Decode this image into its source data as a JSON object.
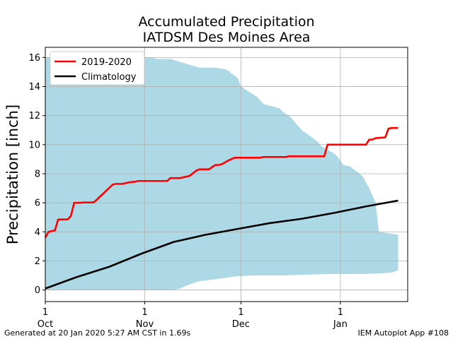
{
  "chart_data": {
    "type": "area",
    "title": [
      "Accumulated Precipitation",
      "IATDSM Des Moines Area"
    ],
    "xlabel": "",
    "ylabel": "Precipitation [inch]",
    "xlim": [
      0,
      113
    ],
    "ylim": [
      -0.8,
      16.7
    ],
    "grid": true,
    "legend_placement": "top-left",
    "x_ticks": [
      {
        "pos": 0,
        "label": "1\nOct"
      },
      {
        "pos": 31,
        "label": "1\nNov"
      },
      {
        "pos": 61,
        "label": "1\nDec"
      },
      {
        "pos": 92,
        "label": "1\nJan"
      }
    ],
    "y_ticks": [
      0,
      2,
      4,
      6,
      8,
      10,
      12,
      14,
      16
    ],
    "series": [
      {
        "name": "2019-2020",
        "color": "#ff0000",
        "x": [
          0,
          1,
          3,
          4,
          6,
          7,
          8,
          9,
          10,
          11,
          12,
          15,
          16,
          21,
          22,
          23,
          24,
          25,
          26,
          28,
          29,
          30,
          31,
          32,
          36,
          38,
          39,
          41,
          42,
          45,
          47,
          48,
          50,
          51,
          53,
          54,
          55,
          57,
          59,
          67,
          68,
          75,
          76,
          87,
          88,
          100,
          101,
          102,
          103,
          106,
          107,
          108,
          110
        ],
        "y": [
          3.6,
          4.0,
          4.1,
          4.85,
          4.85,
          4.86,
          5.1,
          6.0,
          6.0,
          6.0,
          6.02,
          6.02,
          6.2,
          7.25,
          7.3,
          7.3,
          7.3,
          7.35,
          7.4,
          7.45,
          7.5,
          7.5,
          7.5,
          7.5,
          7.5,
          7.5,
          7.7,
          7.7,
          7.7,
          7.85,
          8.2,
          8.3,
          8.3,
          8.3,
          8.6,
          8.6,
          8.65,
          8.9,
          9.1,
          9.1,
          9.15,
          9.15,
          9.2,
          9.2,
          10.0,
          10.0,
          10.35,
          10.35,
          10.45,
          10.5,
          11.1,
          11.15,
          11.15
        ]
      },
      {
        "name": "Climatology",
        "color": "#000000",
        "x": [
          0,
          10,
          20,
          30,
          40,
          50,
          60,
          70,
          80,
          90,
          100,
          110
        ],
        "y": [
          0.1,
          0.9,
          1.6,
          2.5,
          3.3,
          3.8,
          4.2,
          4.6,
          4.9,
          5.3,
          5.75,
          6.15
        ]
      }
    ],
    "range_band": {
      "color": "#add8e6",
      "upper": {
        "x": [
          0,
          33,
          35,
          39,
          48,
          50,
          53,
          56,
          57,
          58,
          60,
          61,
          66,
          68,
          73,
          74,
          75,
          76,
          80,
          85,
          86,
          90,
          91,
          92,
          93,
          95,
          98,
          99,
          101,
          102,
          103,
          104,
          110
        ],
        "y": [
          16.0,
          16.0,
          15.9,
          15.9,
          15.3,
          15.3,
          15.3,
          15.2,
          15.1,
          14.9,
          14.6,
          14.0,
          13.3,
          12.8,
          12.5,
          12.3,
          12.1,
          12.0,
          11.0,
          10.2,
          9.9,
          9.4,
          9.2,
          8.9,
          8.6,
          8.5,
          8.0,
          7.8,
          7.0,
          6.5,
          6.0,
          4.0,
          3.8
        ]
      },
      "lower": {
        "x": [
          0,
          33,
          40,
          42,
          44,
          46,
          48,
          50,
          55,
          60,
          65,
          70,
          75,
          80,
          90,
          92,
          95,
          100,
          105,
          108,
          110
        ],
        "y": [
          0,
          0,
          0,
          0.1,
          0.3,
          0.45,
          0.6,
          0.65,
          0.8,
          0.95,
          1.0,
          1.0,
          1.0,
          1.05,
          1.1,
          1.1,
          1.1,
          1.1,
          1.15,
          1.2,
          1.35
        ]
      }
    }
  },
  "footer": {
    "left": "Generated at 20 Jan 2020 5:27 AM CST in 1.69s",
    "right": "IEM Autoplot App #108"
  }
}
